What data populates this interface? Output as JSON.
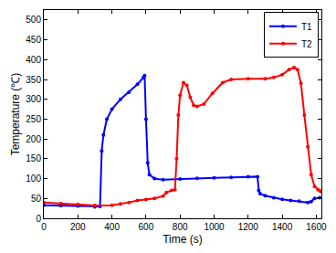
{
  "chart_data": {
    "type": "line",
    "x_label": "Time (s)",
    "y_label": "Temperature (℃)",
    "xlim": [
      0,
      1630
    ],
    "xticks": [
      0,
      200,
      400,
      600,
      800,
      1000,
      1200,
      1400,
      1600
    ],
    "ylim": [
      0,
      525
    ],
    "yticks": [
      0,
      50,
      100,
      150,
      200,
      250,
      300,
      350,
      400,
      450,
      500
    ],
    "grid": false,
    "legend": "upper right",
    "series": [
      {
        "name": "T1",
        "color": "#0000ff",
        "marker": "circle",
        "x": [
          0,
          100,
          200,
          300,
          330,
          340,
          350,
          370,
          400,
          450,
          500,
          550,
          585,
          592,
          600,
          610,
          620,
          650,
          700,
          800,
          900,
          1000,
          1100,
          1200,
          1255,
          1262,
          1270,
          1300,
          1350,
          1400,
          1450,
          1500,
          1550,
          1570,
          1590,
          1620
        ],
        "values": [
          33,
          32,
          31,
          29,
          30,
          170,
          210,
          250,
          275,
          300,
          318,
          338,
          355,
          360,
          250,
          140,
          110,
          100,
          97,
          99,
          101,
          102,
          103,
          105,
          105,
          70,
          62,
          57,
          52,
          48,
          45,
          43,
          40,
          42,
          50,
          52
        ]
      },
      {
        "name": "T2",
        "color": "#ff0000",
        "marker": "circle",
        "x": [
          0,
          100,
          200,
          300,
          400,
          450,
          500,
          550,
          600,
          650,
          700,
          720,
          750,
          770,
          780,
          790,
          800,
          820,
          840,
          860,
          880,
          900,
          940,
          990,
          1050,
          1100,
          1200,
          1300,
          1350,
          1400,
          1440,
          1470,
          1490,
          1510,
          1530,
          1550,
          1570,
          1590,
          1610,
          1625
        ],
        "values": [
          40,
          37,
          35,
          32,
          33,
          36,
          40,
          45,
          47,
          50,
          56,
          65,
          70,
          72,
          150,
          260,
          310,
          342,
          335,
          305,
          285,
          282,
          288,
          315,
          342,
          350,
          352,
          352,
          355,
          362,
          375,
          380,
          375,
          340,
          260,
          180,
          110,
          80,
          72,
          68
        ]
      }
    ]
  }
}
